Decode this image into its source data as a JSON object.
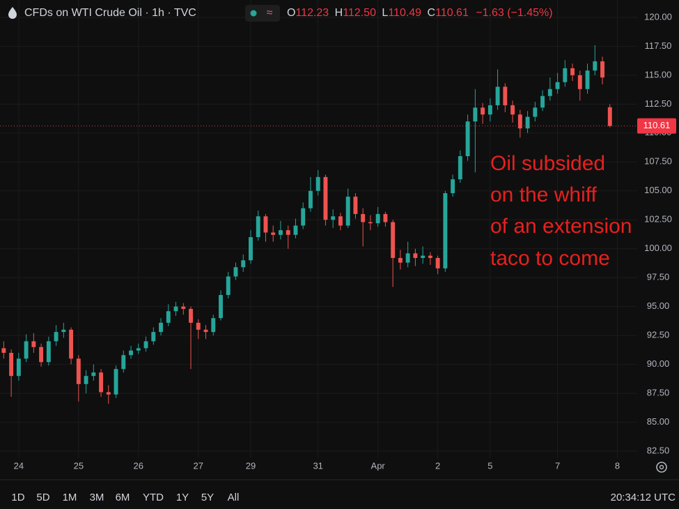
{
  "header": {
    "title": "CFDs on WTI Crude Oil · 1h · TVC",
    "ohlc": [
      {
        "key": "O",
        "value": "112.23"
      },
      {
        "key": "H",
        "value": "112.50"
      },
      {
        "key": "L",
        "value": "110.49"
      },
      {
        "key": "C",
        "value": "110.61"
      }
    ],
    "change": "−1.63 (−1.45%)"
  },
  "chart_data": {
    "type": "candlestick",
    "annotation": [
      "Oil subsided",
      "on the whiff",
      "of an extension",
      "taco to come"
    ],
    "up_color": "#26a69a",
    "down_color": "#ef5350",
    "x": [
      0,
      1,
      2,
      3,
      4,
      5,
      6,
      7,
      8,
      9,
      10,
      11,
      12,
      13,
      14,
      15,
      16,
      17,
      18,
      19,
      20,
      21,
      22,
      23,
      24,
      25,
      26,
      27,
      28,
      29,
      30,
      31,
      32,
      33,
      34,
      35,
      36,
      37,
      38,
      39,
      40,
      41,
      42,
      43,
      44,
      45,
      46,
      47,
      48,
      49,
      50,
      51,
      52,
      53,
      54,
      55,
      56,
      57,
      58,
      59,
      60,
      61,
      62,
      63,
      64,
      65,
      66,
      67,
      68,
      69,
      70,
      71,
      72,
      73,
      74,
      75,
      76,
      77,
      78,
      79,
      80,
      81
    ],
    "open": [
      91.4,
      91,
      89,
      90.5,
      92,
      91.5,
      90.2,
      92,
      92.8,
      93,
      90.5,
      88.3,
      89,
      89.3,
      87.6,
      87.4,
      89.6,
      90.8,
      91.2,
      91.4,
      92,
      92.8,
      93.6,
      94.6,
      95,
      94.8,
      93.6,
      93,
      92.8,
      94,
      96,
      97.6,
      98.4,
      99,
      101,
      102.8,
      101.4,
      101.2,
      101.6,
      101.2,
      102,
      103.5,
      105,
      106.2,
      102.5,
      102.8,
      102,
      104.5,
      103,
      102.3,
      102.2,
      103,
      102.3,
      99.2,
      98.8,
      99.6,
      99.2,
      99.4,
      99.2,
      98.3,
      104.8,
      106,
      108,
      111,
      112.2,
      111.6,
      112.4,
      114,
      112.4,
      111.6,
      110.4,
      111.4,
      112.2,
      113.2,
      113.8,
      114.4,
      115.6,
      115,
      113.8,
      115.4,
      116.2,
      112.23
    ],
    "high": [
      92,
      91.3,
      91,
      92.6,
      92.7,
      91.8,
      92.4,
      93.4,
      93.6,
      93.2,
      90.8,
      89.5,
      90,
      89.6,
      88.2,
      89.9,
      91.2,
      91.6,
      91.8,
      92.4,
      93.2,
      94,
      95.2,
      95.4,
      95.3,
      95,
      93.9,
      93.4,
      94.3,
      96.4,
      98,
      98.8,
      99.5,
      101.6,
      103.3,
      103,
      102,
      102.4,
      102,
      102.6,
      104,
      106.2,
      106.8,
      106.4,
      103.4,
      103.1,
      105.2,
      104.8,
      103.5,
      102.9,
      103.6,
      103.2,
      102.5,
      99.9,
      100.6,
      100,
      100.2,
      99.7,
      99.4,
      105,
      106.4,
      108.5,
      111.6,
      113.8,
      112.6,
      113,
      115.5,
      114.3,
      112.8,
      112,
      111.9,
      112.7,
      113.7,
      114.8,
      115.2,
      116.3,
      116,
      115.4,
      116,
      117.6,
      116.6,
      112.5
    ],
    "low": [
      90.5,
      87.2,
      88.6,
      90.2,
      91,
      89.8,
      89.9,
      91.6,
      92.3,
      90,
      86.8,
      87.5,
      88.6,
      87.2,
      86.6,
      87.1,
      89.3,
      90.5,
      90.9,
      91.1,
      91.7,
      92.5,
      93.3,
      94.2,
      94.3,
      89.6,
      92.2,
      92.2,
      92.5,
      93.8,
      95.7,
      97.3,
      98,
      98.7,
      100.7,
      100.6,
      100.6,
      100.8,
      100,
      100.9,
      101.7,
      103.2,
      104.6,
      102,
      101.8,
      101.6,
      101.8,
      102.6,
      100.2,
      101.6,
      101.9,
      101.9,
      96.7,
      98.2,
      98.4,
      98.5,
      98.7,
      98.6,
      97.8,
      98,
      104.5,
      105.7,
      107.6,
      106.6,
      110.8,
      111,
      112,
      111.8,
      110.9,
      109.6,
      110,
      111,
      111.9,
      112.8,
      113.4,
      114,
      114.5,
      112.8,
      113.4,
      115,
      114.2,
      110.49
    ],
    "close": [
      91,
      89,
      90.5,
      92,
      91.5,
      90.2,
      92,
      92.8,
      93,
      90.5,
      88.3,
      89,
      89.3,
      87.6,
      87.4,
      89.6,
      90.8,
      91.2,
      91.4,
      92,
      92.8,
      93.6,
      94.6,
      95,
      94.8,
      93.6,
      93,
      92.8,
      94,
      96,
      97.6,
      98.4,
      99,
      101,
      102.8,
      101.4,
      101.2,
      101.6,
      101.2,
      102,
      103.5,
      105,
      106.2,
      102.5,
      102.8,
      102,
      104.5,
      103,
      102.3,
      102.2,
      103,
      102.3,
      99.2,
      98.8,
      99.6,
      99.2,
      99.4,
      99.2,
      98.3,
      104.8,
      106,
      108,
      111,
      112.2,
      111.6,
      112.4,
      114,
      112.4,
      111.6,
      110.4,
      111.4,
      112.2,
      113.2,
      113.8,
      114.4,
      115.6,
      115,
      113.8,
      115.4,
      116.2,
      114.8,
      110.61
    ],
    "xlim": [
      -0.5,
      84.65
    ],
    "xticks": [
      {
        "value": 2,
        "label": "24"
      },
      {
        "value": 10,
        "label": "25"
      },
      {
        "value": 18,
        "label": "26"
      },
      {
        "value": 26,
        "label": "27"
      },
      {
        "value": 33,
        "label": "29"
      },
      {
        "value": 42,
        "label": "31"
      },
      {
        "value": 50,
        "label": "Apr"
      },
      {
        "value": 58,
        "label": "2"
      },
      {
        "value": 65,
        "label": "5"
      },
      {
        "value": 74,
        "label": "7"
      },
      {
        "value": 82,
        "label": "8"
      }
    ],
    "ylim": [
      81.9,
      121.5
    ],
    "yticks": [
      {
        "value": 82.5,
        "label": "82.50"
      },
      {
        "value": 85,
        "label": "85.00"
      },
      {
        "value": 87.5,
        "label": "87.50"
      },
      {
        "value": 90,
        "label": "90.00"
      },
      {
        "value": 92.5,
        "label": "92.50"
      },
      {
        "value": 95,
        "label": "95.00"
      },
      {
        "value": 97.5,
        "label": "97.50"
      },
      {
        "value": 100,
        "label": "100.00"
      },
      {
        "value": 102.5,
        "label": "102.50"
      },
      {
        "value": 105,
        "label": "105.00"
      },
      {
        "value": 107.5,
        "label": "107.50"
      },
      {
        "value": 110,
        "label": "110.00"
      },
      {
        "value": 112.5,
        "label": "112.50"
      },
      {
        "value": 115,
        "label": "115.00"
      },
      {
        "value": 117.5,
        "label": "117.50"
      },
      {
        "value": 120,
        "label": "120.00"
      }
    ],
    "grid": true
  },
  "toolbar": {
    "ranges": [
      "1D",
      "5D",
      "1M",
      "3M",
      "6M",
      "YTD",
      "1Y",
      "5Y",
      "All"
    ],
    "time": "20:34:12 UTC"
  }
}
